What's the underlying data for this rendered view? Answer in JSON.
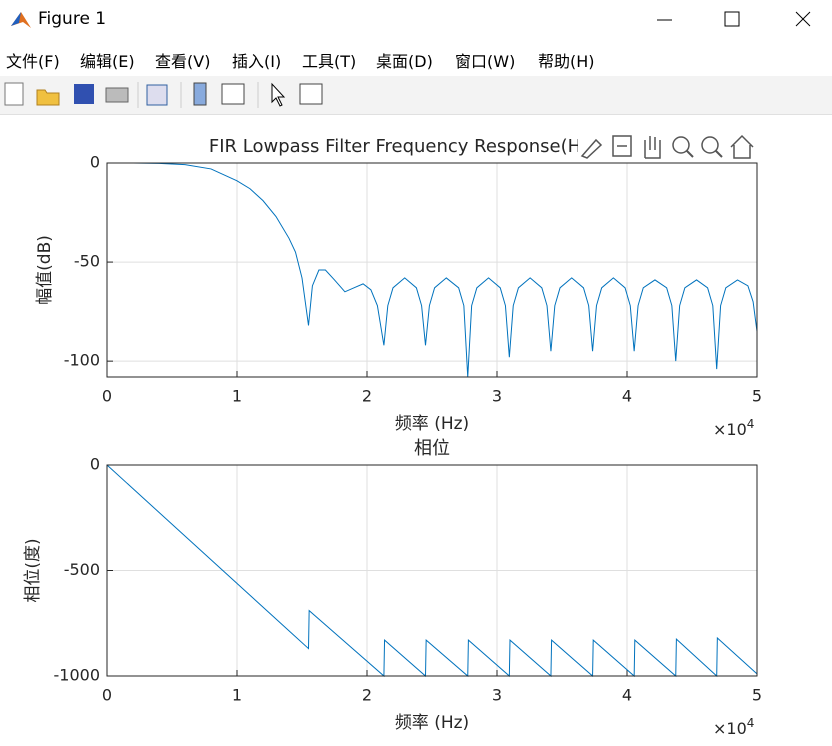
{
  "window": {
    "title": "Figure 1"
  },
  "menu": [
    "文件(F)",
    "编辑(E)",
    "查看(V)",
    "插入(I)",
    "工具(T)",
    "桌面(D)",
    "窗口(W)",
    "帮助(H)"
  ],
  "chart_data": [
    {
      "type": "line",
      "title": "FIR Lowpass Filter Frequency Response(Hamming",
      "xlabel": "频率 (Hz)",
      "ylabel": "幅值(dB)",
      "x_offset_text": {
        "base": "×10",
        "exponent": "4"
      },
      "color": "#0072bd",
      "grid": true,
      "xlim": [
        0,
        50000
      ],
      "ylim": [
        -108,
        0
      ],
      "xticks": [
        0,
        {
          "value": 10000,
          "label": "1"
        },
        {
          "value": 20000,
          "label": "2"
        },
        {
          "value": 30000,
          "label": "3"
        },
        {
          "value": 40000,
          "label": "4"
        },
        {
          "value": 50000,
          "label": "5"
        }
      ],
      "yticks": [
        -100,
        -50,
        0
      ],
      "x": [
        0,
        2000,
        4000,
        6000,
        8000,
        10000,
        11000,
        12000,
        13000,
        14000,
        14500,
        15000,
        15500,
        15800,
        16300,
        16800,
        17500,
        18300,
        19000,
        19700,
        20300,
        20800,
        21300,
        21600,
        22000,
        22900,
        23800,
        24200,
        24500,
        24800,
        25200,
        26100,
        27050,
        27450,
        27750,
        28050,
        28450,
        29350,
        30250,
        30650,
        30950,
        31250,
        31650,
        32550,
        33450,
        33850,
        34150,
        34450,
        34850,
        35750,
        36650,
        37050,
        37350,
        37650,
        38050,
        38950,
        39850,
        40250,
        40550,
        40850,
        41250,
        42150,
        43050,
        43450,
        43750,
        44050,
        44450,
        45350,
        46200,
        46600,
        46900,
        47200,
        47600,
        48500,
        49300,
        49700,
        50000
      ],
      "values": [
        0,
        0,
        -0.2,
        -0.8,
        -3,
        -9,
        -13,
        -19,
        -27,
        -38,
        -45,
        -58,
        -82,
        -62,
        -54,
        -54,
        -59,
        -65,
        -63,
        -61,
        -64,
        -72,
        -92,
        -72,
        -63,
        -58,
        -63,
        -72,
        -92,
        -72,
        -63,
        -58,
        -63,
        -72,
        -108,
        -72,
        -63,
        -58,
        -63,
        -72,
        -98,
        -72,
        -63,
        -58,
        -63,
        -72,
        -95,
        -72,
        -63,
        -58,
        -63,
        -72,
        -95,
        -72,
        -63,
        -58,
        -63,
        -72,
        -95,
        -72,
        -63,
        -59,
        -63,
        -72,
        -100,
        -72,
        -63,
        -59,
        -63,
        -72,
        -104,
        -72,
        -63,
        -59,
        -62,
        -70,
        -85
      ]
    },
    {
      "type": "line",
      "title": "相位",
      "xlabel": "频率 (Hz)",
      "ylabel": "相位(度)",
      "x_offset_text": {
        "base": "×10",
        "exponent": "4"
      },
      "color": "#0072bd",
      "grid": true,
      "xlim": [
        0,
        50000
      ],
      "ylim": [
        -1000,
        0
      ],
      "xticks": [
        0,
        {
          "value": 10000,
          "label": "1"
        },
        {
          "value": 20000,
          "label": "2"
        },
        {
          "value": 30000,
          "label": "3"
        },
        {
          "value": 40000,
          "label": "4"
        },
        {
          "value": 50000,
          "label": "5"
        }
      ],
      "yticks": [
        -1000,
        -500,
        0
      ],
      "x": [
        0,
        15500,
        15550,
        21300,
        21350,
        24500,
        24550,
        27750,
        27800,
        30950,
        31000,
        34150,
        34200,
        37350,
        37400,
        40550,
        40600,
        43750,
        43800,
        46900,
        46950,
        50000
      ],
      "values": [
        0,
        -870,
        -690,
        -1000,
        -830,
        -1000,
        -830,
        -1000,
        -830,
        -1000,
        -830,
        -1000,
        -830,
        -1000,
        -830,
        -1000,
        -830,
        -1000,
        -825,
        -1000,
        -820,
        -990
      ]
    }
  ]
}
